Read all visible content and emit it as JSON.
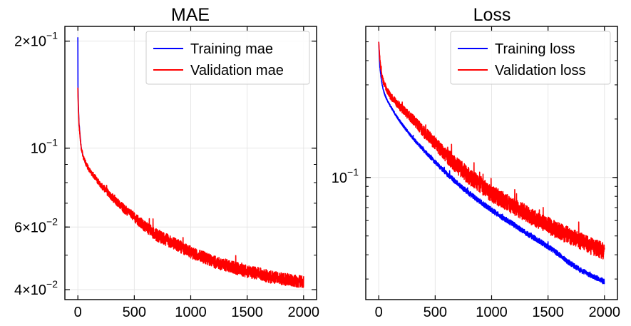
{
  "chart_data": [
    {
      "type": "line",
      "title": "MAE",
      "xlabel": "",
      "ylabel": "",
      "yscale": "log",
      "xlim": [
        -115,
        2115
      ],
      "ylim": [
        0.0375,
        0.22
      ],
      "grid": true,
      "legend_position": "top-right",
      "x_ticks": [
        0,
        500,
        1000,
        1500,
        2000
      ],
      "x_tick_labels": [
        "0",
        "500",
        "1000",
        "1500",
        "2000"
      ],
      "y_ticks": [
        0.04,
        0.06,
        0.1,
        0.2
      ],
      "y_tick_labels": [
        {
          "mant": "4",
          "exp": "−2"
        },
        {
          "mant": "6",
          "exp": "−2"
        },
        {
          "mant": "",
          "exp": "−1"
        },
        {
          "mant": "2",
          "exp": "−1"
        }
      ],
      "series": [
        {
          "name": "Training mae",
          "color": "#0000ff",
          "x": [
            0,
            1,
            5,
            10,
            20,
            30,
            50,
            75,
            100,
            150,
            200,
            300,
            400,
            500,
            600,
            700,
            800,
            900,
            1000,
            1100,
            1200,
            1300,
            1400,
            1500,
            1600,
            1700,
            1800,
            1900,
            2000
          ],
          "values": [
            0.205,
            0.15,
            0.13,
            0.118,
            0.108,
            0.1,
            0.094,
            0.09,
            0.087,
            0.083,
            0.079,
            0.073,
            0.068,
            0.064,
            0.06,
            0.057,
            0.055,
            0.053,
            0.051,
            0.0495,
            0.048,
            0.047,
            0.046,
            0.045,
            0.0445,
            0.0435,
            0.043,
            0.0425,
            0.042
          ]
        },
        {
          "name": "Validation mae",
          "color": "#ff0000",
          "x": [
            0,
            1,
            5,
            10,
            20,
            30,
            50,
            75,
            100,
            150,
            200,
            300,
            400,
            500,
            600,
            700,
            800,
            900,
            1000,
            1100,
            1200,
            1300,
            1400,
            1500,
            1600,
            1700,
            1800,
            1900,
            2000
          ],
          "values": [
            0.148,
            0.14,
            0.128,
            0.117,
            0.107,
            0.1,
            0.094,
            0.09,
            0.087,
            0.083,
            0.079,
            0.073,
            0.068,
            0.064,
            0.06,
            0.057,
            0.055,
            0.053,
            0.051,
            0.0495,
            0.048,
            0.047,
            0.046,
            0.045,
            0.0445,
            0.0435,
            0.043,
            0.0425,
            0.042
          ],
          "noise": 0.04
        }
      ]
    },
    {
      "type": "line",
      "title": "Loss",
      "xlabel": "",
      "ylabel": "",
      "yscale": "log",
      "xlim": [
        -115,
        2115
      ],
      "ylim": [
        0.0235,
        0.6
      ],
      "grid": true,
      "legend_position": "top-right",
      "x_ticks": [
        0,
        500,
        1000,
        1500,
        2000
      ],
      "x_tick_labels": [
        "0",
        "500",
        "1000",
        "1500",
        "2000"
      ],
      "y_ticks": [
        0.1
      ],
      "y_tick_labels": [
        {
          "mant": "",
          "exp": "−1"
        }
      ],
      "series": [
        {
          "name": "Training loss",
          "color": "#0000ff",
          "x": [
            0,
            5,
            10,
            20,
            30,
            50,
            75,
            100,
            150,
            200,
            300,
            400,
            500,
            600,
            700,
            800,
            900,
            1000,
            1100,
            1200,
            1300,
            1400,
            1500,
            1600,
            1700,
            1800,
            1900,
            2000
          ],
          "values": [
            0.5,
            0.42,
            0.37,
            0.33,
            0.3,
            0.27,
            0.25,
            0.235,
            0.21,
            0.19,
            0.16,
            0.138,
            0.12,
            0.105,
            0.093,
            0.083,
            0.075,
            0.068,
            0.062,
            0.057,
            0.052,
            0.048,
            0.044,
            0.04,
            0.036,
            0.033,
            0.031,
            0.029
          ],
          "noise": 0.03
        },
        {
          "name": "Validation loss",
          "color": "#ff0000",
          "x": [
            0,
            5,
            10,
            20,
            30,
            50,
            75,
            100,
            150,
            200,
            300,
            400,
            500,
            600,
            700,
            800,
            900,
            1000,
            1100,
            1200,
            1300,
            1400,
            1500,
            1600,
            1700,
            1800,
            1900,
            2000
          ],
          "values": [
            0.5,
            0.44,
            0.4,
            0.36,
            0.33,
            0.3,
            0.28,
            0.265,
            0.245,
            0.228,
            0.2,
            0.172,
            0.15,
            0.13,
            0.115,
            0.102,
            0.092,
            0.083,
            0.077,
            0.071,
            0.066,
            0.061,
            0.057,
            0.053,
            0.05,
            0.047,
            0.044,
            0.042
          ],
          "noise": 0.1
        }
      ]
    }
  ]
}
